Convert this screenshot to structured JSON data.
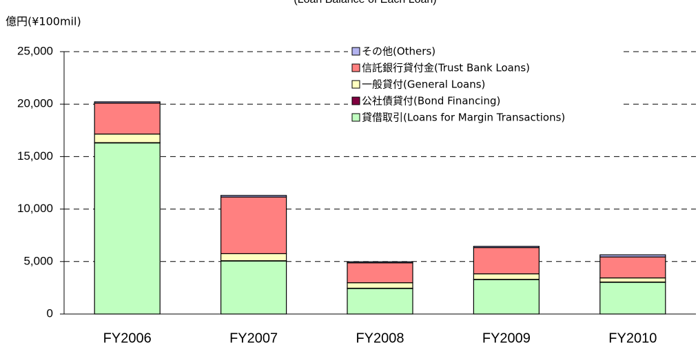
{
  "chart_data": {
    "type": "bar",
    "stacked": true,
    "title": "(Loan Balance of Each Loan)",
    "y_label": "億円(¥100mil)",
    "categories": [
      "FY2006",
      "FY2007",
      "FY2008",
      "FY2009",
      "FY2010"
    ],
    "series": [
      {
        "name": "貸借取引(Loans for Margin Transactions)",
        "color": "#c0ffc0",
        "values": [
          16300,
          5050,
          2430,
          3280,
          3020
        ]
      },
      {
        "name": "公社債貸付(Bond Financing)",
        "color": "#800040",
        "values": [
          30,
          30,
          30,
          30,
          30
        ]
      },
      {
        "name": "一般貸付(General Loans)",
        "color": "#ffffc0",
        "values": [
          820,
          670,
          520,
          520,
          390
        ]
      },
      {
        "name": "信託銀行貸付金(Trust Bank Loans)",
        "color": "#ff8080",
        "values": [
          2950,
          5400,
          1900,
          2500,
          2000
        ]
      },
      {
        "name": "その他(Others)",
        "color": "#b3b3f0",
        "values": [
          120,
          150,
          100,
          120,
          200
        ]
      }
    ],
    "ylim": [
      0,
      25000
    ],
    "yticks": [
      0,
      {
        "value": 5000,
        "label": "5,000"
      },
      {
        "value": 10000,
        "label": "10,000"
      },
      {
        "value": 15000,
        "label": "15,000"
      },
      {
        "value": 20000,
        "label": "20,000"
      },
      {
        "value": 25000,
        "label": "25,000"
      }
    ],
    "grid": true
  }
}
